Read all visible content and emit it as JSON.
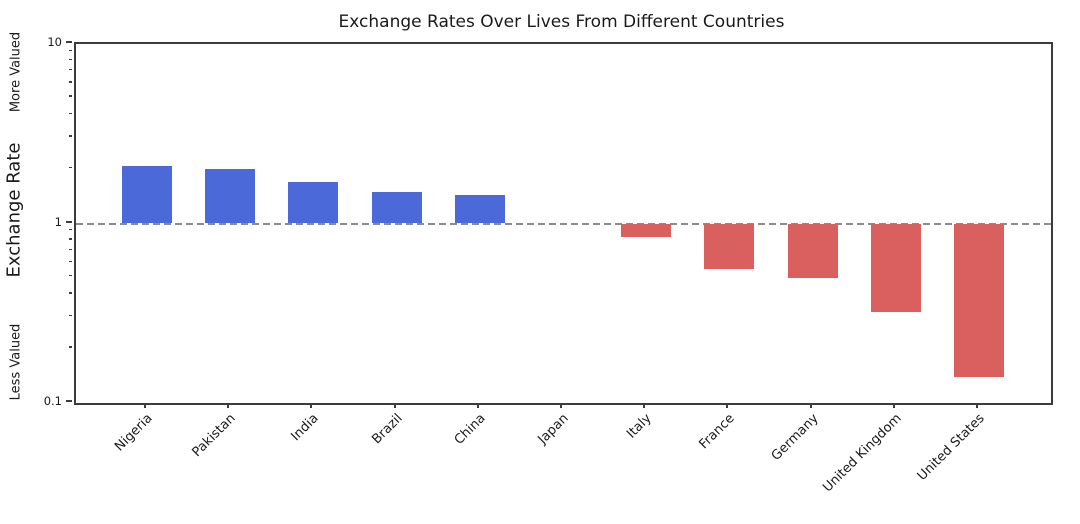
{
  "chart_data": {
    "type": "bar",
    "title": "Exchange Rates Over Lives From Different Countries",
    "categories": [
      "Nigeria",
      "Pakistan",
      "India",
      "Brazil",
      "China",
      "Japan",
      "Italy",
      "France",
      "Germany",
      "United Kingdom",
      "United States"
    ],
    "values": [
      2.1,
      2.0,
      1.7,
      1.5,
      1.45,
      1.0,
      0.84,
      0.56,
      0.5,
      0.32,
      0.14
    ],
    "xlabel": "",
    "ylabel": "Exchange Rate",
    "ylabel_more": "More Valued",
    "ylabel_less": "Less Valued",
    "yscale": "log",
    "ylim": [
      0.1,
      10
    ],
    "ytick_labels": [
      "10",
      "1",
      "0.1"
    ],
    "ytick_values": [
      10,
      1,
      0.1
    ],
    "reference_line_y": 1,
    "grid": false,
    "legend": "none",
    "colors": {
      "bar_above": "#4b69d9",
      "bar_below": "#d9605e",
      "reference_line": "#8c8c8c",
      "spine": "#3c3c3c",
      "text": "#1a1a1a"
    }
  }
}
